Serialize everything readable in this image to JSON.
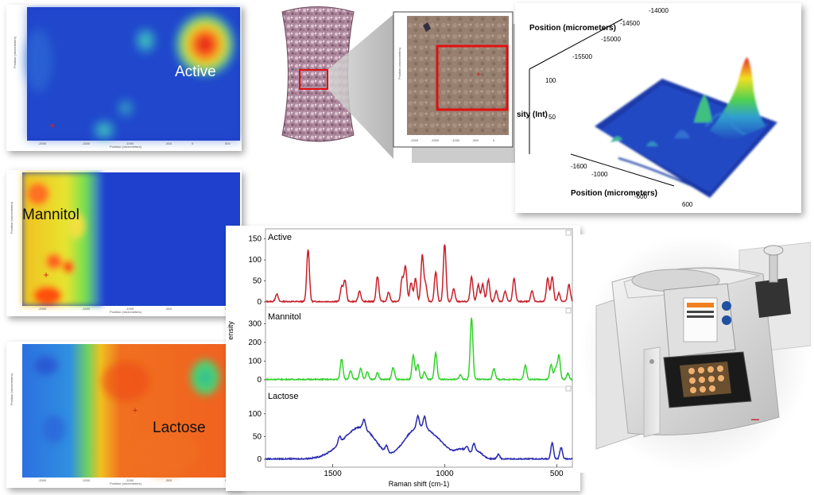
{
  "maps": {
    "active_label": "Active",
    "mannitol_label": "Mannitol",
    "lactose_label": "Lactose"
  },
  "surface": {
    "y_axis_label": "Position (micrometers)",
    "x_axis_label": "Position (micrometers)",
    "z_axis_label": "sity (Int)",
    "y_ticks": [
      "-14000",
      "-14500",
      "-15000",
      "-15500",
      "-1600"
    ],
    "x_ticks": [
      "-1600",
      "-1000",
      "-600",
      "600"
    ],
    "z_ticks": [
      "100",
      "50"
    ]
  },
  "colors": {
    "active": "#c8202a",
    "mannitol": "#33d12c",
    "lactose": "#2727b0"
  },
  "chart_data": {
    "type": "line",
    "x_axis_reversed": true,
    "xlabel": "Raman shift (cm-1)",
    "ylabel": "ensity",
    "xlim": [
      1800,
      430
    ],
    "x_ticks": [
      1500,
      1000,
      500
    ],
    "panels": [
      {
        "name": "Active",
        "ylim": [
          0,
          155
        ],
        "y_ticks": [
          0,
          50,
          100,
          150
        ],
        "peaks": [
          [
            1750,
            18
          ],
          [
            1610,
            125
          ],
          [
            1460,
            35
          ],
          [
            1445,
            50
          ],
          [
            1380,
            25
          ],
          [
            1300,
            60
          ],
          [
            1250,
            22
          ],
          [
            1190,
            55
          ],
          [
            1175,
            83
          ],
          [
            1150,
            45
          ],
          [
            1130,
            55
          ],
          [
            1100,
            110
          ],
          [
            1085,
            40
          ],
          [
            1040,
            70
          ],
          [
            1000,
            137
          ],
          [
            960,
            30
          ],
          [
            880,
            58
          ],
          [
            850,
            40
          ],
          [
            830,
            42
          ],
          [
            805,
            52
          ],
          [
            770,
            25
          ],
          [
            730,
            25
          ],
          [
            690,
            55
          ],
          [
            610,
            25
          ],
          [
            540,
            55
          ],
          [
            520,
            60
          ],
          [
            490,
            20
          ],
          [
            445,
            40
          ]
        ]
      },
      {
        "name": "Mannitol",
        "ylim": [
          0,
          340
        ],
        "y_ticks": [
          0,
          100,
          200,
          300
        ],
        "peaks": [
          [
            1460,
            110
          ],
          [
            1420,
            45
          ],
          [
            1375,
            60
          ],
          [
            1345,
            40
          ],
          [
            1300,
            35
          ],
          [
            1230,
            65
          ],
          [
            1140,
            130
          ],
          [
            1120,
            80
          ],
          [
            1090,
            40
          ],
          [
            1040,
            140
          ],
          [
            930,
            25
          ],
          [
            880,
            330
          ],
          [
            780,
            60
          ],
          [
            640,
            75
          ],
          [
            525,
            80
          ],
          [
            505,
            60
          ],
          [
            490,
            130
          ],
          [
            450,
            30
          ]
        ]
      },
      {
        "name": "Lactose",
        "ylim": [
          0,
          140
        ],
        "y_ticks": [
          0,
          50,
          100
        ],
        "broad": [
          [
            1460,
            20,
            60
          ],
          [
            1400,
            35,
            50
          ],
          [
            1340,
            40,
            50
          ],
          [
            1150,
            35,
            50
          ],
          [
            1090,
            45,
            55
          ],
          [
            1020,
            20,
            45
          ],
          [
            920,
            20,
            30
          ],
          [
            850,
            15,
            20
          ]
        ],
        "peaks": [
          [
            1470,
            15
          ],
          [
            1360,
            20
          ],
          [
            1260,
            15
          ],
          [
            1120,
            25
          ],
          [
            1090,
            25
          ],
          [
            900,
            10
          ],
          [
            870,
            20
          ],
          [
            760,
            10
          ],
          [
            520,
            35
          ],
          [
            480,
            25
          ]
        ]
      }
    ]
  }
}
